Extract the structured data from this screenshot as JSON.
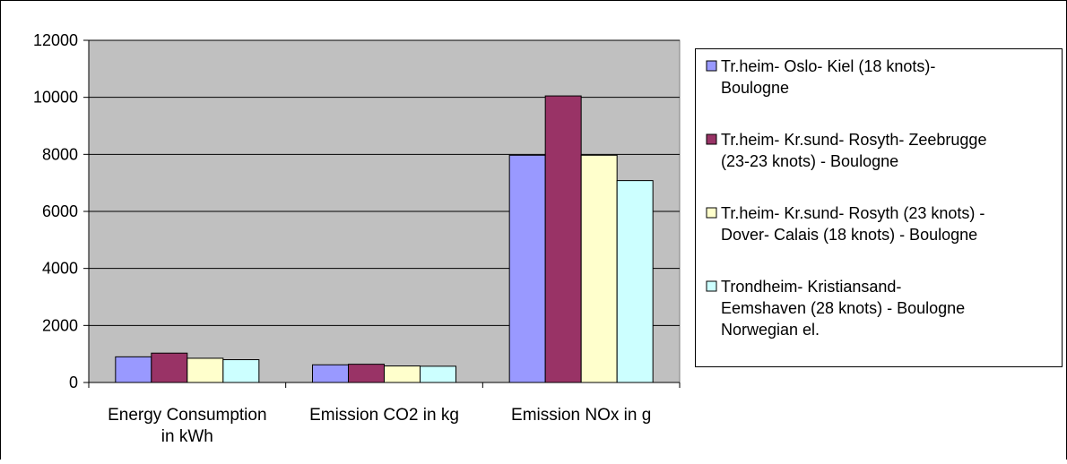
{
  "chart_data": {
    "type": "bar",
    "categories": [
      [
        "Energy Consumption",
        "in kWh"
      ],
      [
        "Emission CO2 in kg"
      ],
      [
        "Emission NOx in g"
      ]
    ],
    "ylim": [
      0,
      12000
    ],
    "yticks": [
      0,
      2000,
      4000,
      6000,
      8000,
      10000,
      12000
    ],
    "grid": true,
    "legend_position": "right",
    "plot_background": "#c0c0c0",
    "series": [
      {
        "name": [
          "Tr.heim- Oslo- Kiel (18 knots)-",
          "Boulogne"
        ],
        "color": "#9999ff",
        "values": [
          900,
          620,
          7970
        ]
      },
      {
        "name": [
          "Tr.heim- Kr.sund- Rosyth- Zeebrugge",
          "(23-23 knots) - Boulogne"
        ],
        "color": "#993366",
        "values": [
          1030,
          640,
          10050
        ]
      },
      {
        "name": [
          "Tr.heim- Kr.sund- Rosyth (23 knots) -",
          "Dover- Calais (18 knots) - Boulogne"
        ],
        "color": "#ffffcc",
        "values": [
          850,
          580,
          7970
        ]
      },
      {
        "name": [
          "Trondheim- Kristiansand-",
          "Eemshaven (28 knots) - Boulogne",
          "Norwegian el."
        ],
        "color": "#ccffff",
        "values": [
          800,
          570,
          7080
        ]
      }
    ]
  }
}
